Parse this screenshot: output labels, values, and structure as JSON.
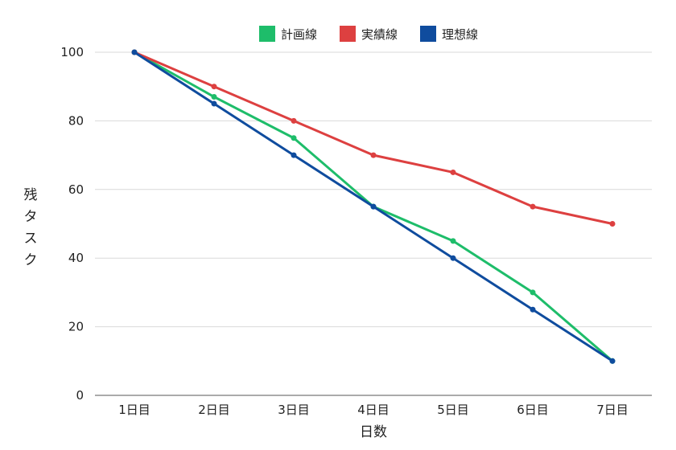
{
  "chart_data": {
    "type": "line",
    "title": "",
    "xlabel": "日数",
    "ylabel": "残タスク",
    "categories": [
      "1日目",
      "2日目",
      "3日目",
      "4日目",
      "5日目",
      "6日目",
      "7日目"
    ],
    "ylim": [
      0,
      100
    ],
    "yticks": [
      0,
      20,
      40,
      60,
      80,
      100
    ],
    "grid": true,
    "legend_position": "top-center",
    "series": [
      {
        "name": "計画線",
        "color": "#1ebd6a",
        "values": [
          100,
          87,
          75,
          55,
          45,
          30,
          10
        ]
      },
      {
        "name": "実績線",
        "color": "#dd4040",
        "values": [
          100,
          90,
          80,
          70,
          65,
          55,
          50
        ]
      },
      {
        "name": "理想線",
        "color": "#0f4c9e",
        "values": [
          100,
          85,
          70,
          55,
          40,
          25,
          10
        ]
      }
    ]
  }
}
